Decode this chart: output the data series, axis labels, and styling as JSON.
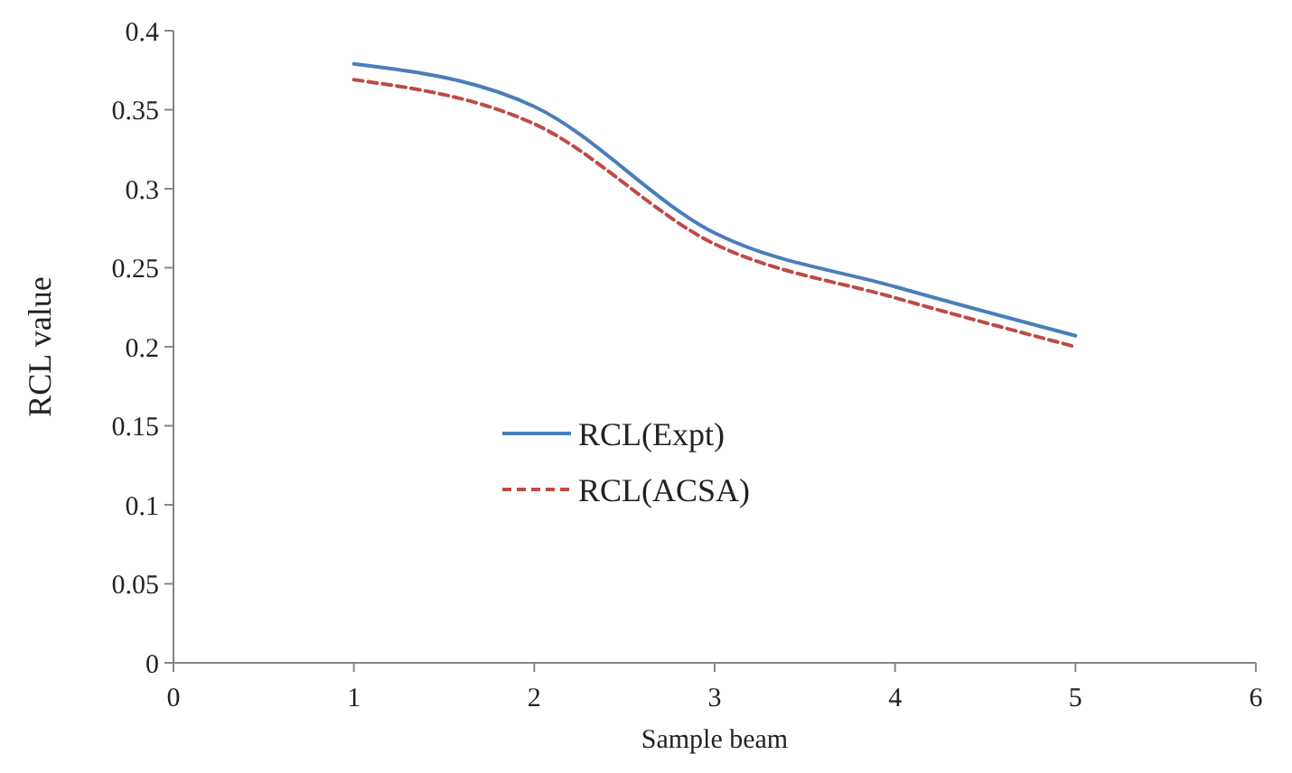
{
  "chart_data": {
    "type": "line",
    "xlabel": "Sample beam",
    "ylabel": "RCL value",
    "x": [
      1,
      2,
      3,
      4,
      5
    ],
    "series": [
      {
        "name": "RCL(Expt)",
        "color": "#4a7ebb",
        "values": [
          0.379,
          0.352,
          0.272,
          0.238,
          0.207
        ],
        "line_style": "solid"
      },
      {
        "name": "RCL(ACSA)",
        "color": "#be4b48",
        "values": [
          0.369,
          0.341,
          0.265,
          0.231,
          0.2
        ],
        "line_style": "dashed"
      }
    ],
    "xlim": [
      0,
      6
    ],
    "xticks": [
      0,
      1,
      2,
      3,
      4,
      5,
      6
    ],
    "ylim": [
      0,
      0.4
    ],
    "yticks": [
      0,
      0.05,
      0.1,
      0.15,
      0.2,
      0.25,
      0.3,
      0.35,
      0.4
    ],
    "legend": "left",
    "grid": false,
    "marker": "none"
  }
}
